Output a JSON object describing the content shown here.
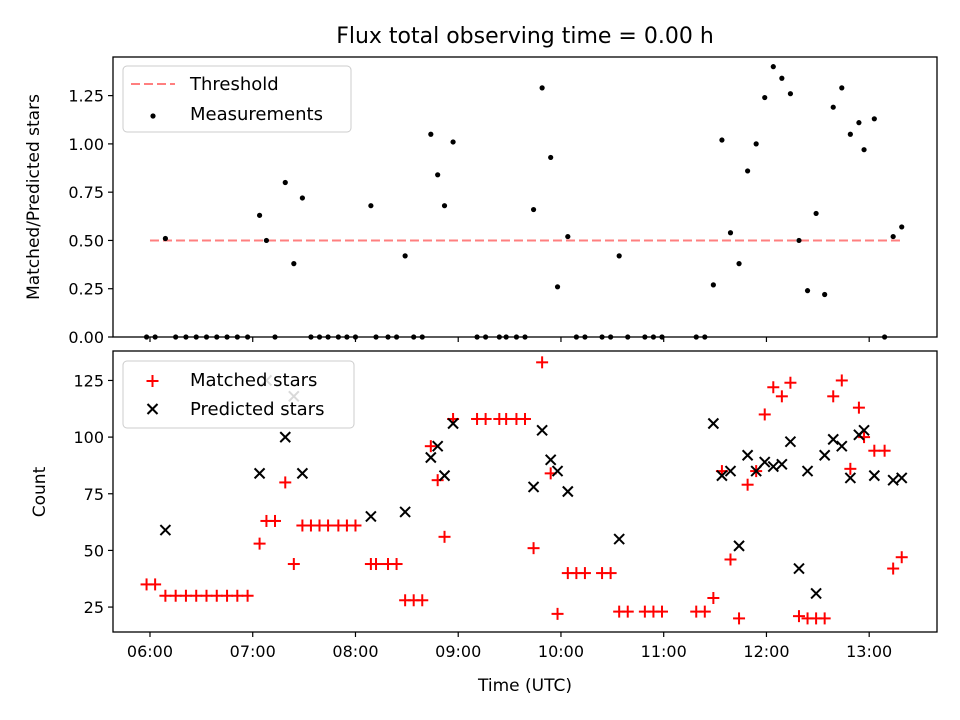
{
  "figure": {
    "title": "Flux total observing time = 0.00 h",
    "xlabel": "Time (UTC)",
    "x_tick_labels": [
      "06:00",
      "07:00",
      "08:00",
      "09:00",
      "10:00",
      "11:00",
      "12:00",
      "13:00"
    ]
  },
  "chart_data": [
    {
      "type": "scatter",
      "ylabel": "Matched/Predicted stars",
      "ylim": [
        0,
        1.45
      ],
      "y_ticks": [
        0,
        0.25,
        0.5,
        0.75,
        1.0,
        1.25
      ],
      "y_tick_labels": [
        "0.00",
        "0.25",
        "0.50",
        "0.75",
        "1.00",
        "1.25"
      ],
      "xlim_hours": [
        5.64,
        13.66
      ],
      "grid": false,
      "legend_position": "top-left",
      "threshold": {
        "name": "Threshold",
        "value": 0.5,
        "x_range": [
          "06:00",
          "13:20"
        ],
        "color": "#ff7f7f"
      },
      "series": [
        {
          "name": "Measurements",
          "color": "#000000",
          "points": [
            [
              "05:58",
              0.0
            ],
            [
              "06:03",
              0.0
            ],
            [
              "06:09",
              0.51
            ],
            [
              "06:15",
              0.0
            ],
            [
              "06:21",
              0.0
            ],
            [
              "06:27",
              0.0
            ],
            [
              "06:33",
              0.0
            ],
            [
              "06:39",
              0.0
            ],
            [
              "06:45",
              0.0
            ],
            [
              "06:51",
              0.0
            ],
            [
              "06:57",
              0.0
            ],
            [
              "07:04",
              0.63
            ],
            [
              "07:08",
              0.5
            ],
            [
              "07:13",
              0.0
            ],
            [
              "07:19",
              0.8
            ],
            [
              "07:24",
              0.38
            ],
            [
              "07:29",
              0.72
            ],
            [
              "07:34",
              0.0
            ],
            [
              "07:39",
              0.0
            ],
            [
              "07:44",
              0.0
            ],
            [
              "07:50",
              0.0
            ],
            [
              "07:55",
              0.0
            ],
            [
              "08:00",
              0.0
            ],
            [
              "08:09",
              0.68
            ],
            [
              "08:12",
              0.0
            ],
            [
              "08:19",
              0.0
            ],
            [
              "08:24",
              0.0
            ],
            [
              "08:29",
              0.42
            ],
            [
              "08:34",
              0.0
            ],
            [
              "08:39",
              0.0
            ],
            [
              "08:44",
              1.05
            ],
            [
              "08:48",
              0.84
            ],
            [
              "08:52",
              0.68
            ],
            [
              "08:57",
              1.01
            ],
            [
              "09:11",
              0.0
            ],
            [
              "09:16",
              0.0
            ],
            [
              "09:24",
              0.0
            ],
            [
              "09:28",
              0.0
            ],
            [
              "09:34",
              0.0
            ],
            [
              "09:39",
              0.0
            ],
            [
              "09:44",
              0.66
            ],
            [
              "09:49",
              1.29
            ],
            [
              "09:54",
              0.93
            ],
            [
              "09:58",
              0.26
            ],
            [
              "10:04",
              0.52
            ],
            [
              "10:09",
              0.0
            ],
            [
              "10:14",
              0.0
            ],
            [
              "10:24",
              0.0
            ],
            [
              "10:29",
              0.0
            ],
            [
              "10:34",
              0.42
            ],
            [
              "10:39",
              0.0
            ],
            [
              "10:49",
              0.0
            ],
            [
              "10:54",
              0.0
            ],
            [
              "10:59",
              0.0
            ],
            [
              "11:19",
              0.0
            ],
            [
              "11:24",
              0.0
            ],
            [
              "11:29",
              0.27
            ],
            [
              "11:34",
              1.02
            ],
            [
              "11:39",
              0.54
            ],
            [
              "11:44",
              0.38
            ],
            [
              "11:49",
              0.86
            ],
            [
              "11:54",
              1.0
            ],
            [
              "11:59",
              1.24
            ],
            [
              "12:04",
              1.4
            ],
            [
              "12:09",
              1.34
            ],
            [
              "12:14",
              1.26
            ],
            [
              "12:19",
              0.5
            ],
            [
              "12:24",
              0.24
            ],
            [
              "12:29",
              0.64
            ],
            [
              "12:34",
              0.22
            ],
            [
              "12:39",
              1.19
            ],
            [
              "12:44",
              1.29
            ],
            [
              "12:49",
              1.05
            ],
            [
              "12:54",
              1.11
            ],
            [
              "12:57",
              0.97
            ],
            [
              "13:03",
              1.13
            ],
            [
              "13:09",
              0.0
            ],
            [
              "13:14",
              0.52
            ],
            [
              "13:19",
              0.57
            ]
          ]
        }
      ]
    },
    {
      "type": "scatter",
      "ylabel": "Count",
      "ylim": [
        14,
        138
      ],
      "y_ticks": [
        25,
        50,
        75,
        100,
        125
      ],
      "y_tick_labels": [
        "25",
        "50",
        "75",
        "100",
        "125"
      ],
      "xlim_hours": [
        5.64,
        13.66
      ],
      "grid": false,
      "legend_position": "top-left",
      "series": [
        {
          "name": "Matched stars",
          "marker": "+",
          "color": "#ff0000",
          "points": [
            [
              "05:58",
              35
            ],
            [
              "06:03",
              35
            ],
            [
              "06:09",
              30
            ],
            [
              "06:15",
              30
            ],
            [
              "06:21",
              30
            ],
            [
              "06:27",
              30
            ],
            [
              "06:33",
              30
            ],
            [
              "06:39",
              30
            ],
            [
              "06:45",
              30
            ],
            [
              "06:51",
              30
            ],
            [
              "06:57",
              30
            ],
            [
              "07:04",
              53
            ],
            [
              "07:08",
              63
            ],
            [
              "07:13",
              63
            ],
            [
              "07:19",
              80
            ],
            [
              "07:24",
              44
            ],
            [
              "07:29",
              61
            ],
            [
              "07:34",
              61
            ],
            [
              "07:39",
              61
            ],
            [
              "07:44",
              61
            ],
            [
              "07:50",
              61
            ],
            [
              "07:55",
              61
            ],
            [
              "08:00",
              61
            ],
            [
              "08:09",
              44
            ],
            [
              "08:12",
              44
            ],
            [
              "08:19",
              44
            ],
            [
              "08:24",
              44
            ],
            [
              "08:29",
              28
            ],
            [
              "08:34",
              28
            ],
            [
              "08:39",
              28
            ],
            [
              "08:44",
              96
            ],
            [
              "08:48",
              81
            ],
            [
              "08:52",
              56
            ],
            [
              "08:57",
              108
            ],
            [
              "09:11",
              108
            ],
            [
              "09:16",
              108
            ],
            [
              "09:24",
              108
            ],
            [
              "09:28",
              108
            ],
            [
              "09:34",
              108
            ],
            [
              "09:39",
              108
            ],
            [
              "09:44",
              51
            ],
            [
              "09:49",
              133
            ],
            [
              "09:54",
              84
            ],
            [
              "09:58",
              22
            ],
            [
              "10:04",
              40
            ],
            [
              "10:09",
              40
            ],
            [
              "10:14",
              40
            ],
            [
              "10:24",
              40
            ],
            [
              "10:29",
              40
            ],
            [
              "10:34",
              23
            ],
            [
              "10:39",
              23
            ],
            [
              "10:49",
              23
            ],
            [
              "10:54",
              23
            ],
            [
              "10:59",
              23
            ],
            [
              "11:19",
              23
            ],
            [
              "11:24",
              23
            ],
            [
              "11:29",
              29
            ],
            [
              "11:34",
              85
            ],
            [
              "11:39",
              46
            ],
            [
              "11:44",
              20
            ],
            [
              "11:49",
              79
            ],
            [
              "11:54",
              85
            ],
            [
              "11:59",
              110
            ],
            [
              "12:04",
              122
            ],
            [
              "12:09",
              118
            ],
            [
              "12:14",
              124
            ],
            [
              "12:19",
              21
            ],
            [
              "12:24",
              20
            ],
            [
              "12:29",
              20
            ],
            [
              "12:34",
              20
            ],
            [
              "12:39",
              118
            ],
            [
              "12:44",
              125
            ],
            [
              "12:49",
              86
            ],
            [
              "12:54",
              113
            ],
            [
              "12:57",
              100
            ],
            [
              "13:03",
              94
            ],
            [
              "13:09",
              94
            ],
            [
              "13:14",
              42
            ],
            [
              "13:19",
              47
            ]
          ]
        },
        {
          "name": "Predicted stars",
          "marker": "x",
          "color": "#000000",
          "points": [
            [
              "06:09",
              59
            ],
            [
              "07:04",
              84
            ],
            [
              "07:08",
              125
            ],
            [
              "07:19",
              100
            ],
            [
              "07:24",
              118
            ],
            [
              "07:29",
              84
            ],
            [
              "08:09",
              65
            ],
            [
              "08:29",
              67
            ],
            [
              "08:44",
              91
            ],
            [
              "08:48",
              96
            ],
            [
              "08:52",
              83
            ],
            [
              "08:57",
              106
            ],
            [
              "09:44",
              78
            ],
            [
              "09:49",
              103
            ],
            [
              "09:54",
              90
            ],
            [
              "09:58",
              85
            ],
            [
              "10:04",
              76
            ],
            [
              "10:34",
              55
            ],
            [
              "11:29",
              106
            ],
            [
              "11:34",
              83
            ],
            [
              "11:39",
              85
            ],
            [
              "11:44",
              52
            ],
            [
              "11:49",
              92
            ],
            [
              "11:54",
              85
            ],
            [
              "11:59",
              89
            ],
            [
              "12:04",
              87
            ],
            [
              "12:09",
              88
            ],
            [
              "12:14",
              98
            ],
            [
              "12:19",
              42
            ],
            [
              "12:24",
              85
            ],
            [
              "12:29",
              31
            ],
            [
              "12:34",
              92
            ],
            [
              "12:39",
              99
            ],
            [
              "12:44",
              96
            ],
            [
              "12:49",
              82
            ],
            [
              "12:54",
              101
            ],
            [
              "12:57",
              103
            ],
            [
              "13:03",
              83
            ],
            [
              "13:14",
              81
            ],
            [
              "13:19",
              82
            ]
          ]
        }
      ]
    }
  ]
}
